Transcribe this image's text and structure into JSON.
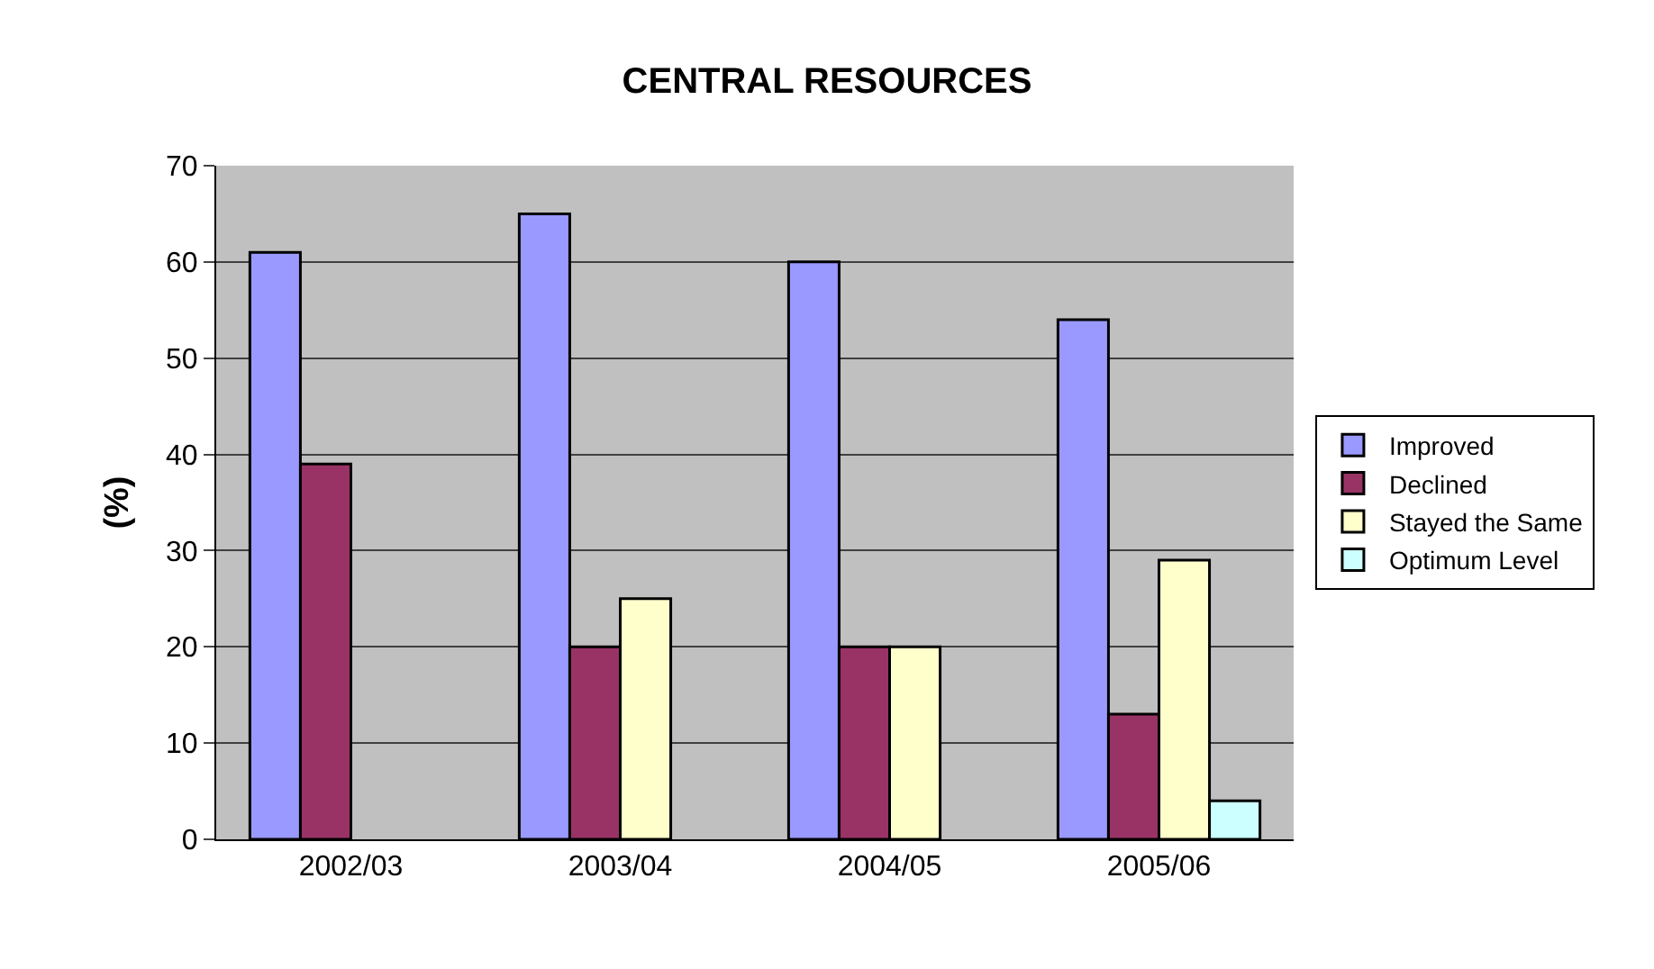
{
  "chart_data": {
    "type": "bar",
    "title": "CENTRAL RESOURCES",
    "ylabel": "(%)",
    "categories": [
      "2002/03",
      "2003/04",
      "2004/05",
      "2005/06"
    ],
    "series": [
      {
        "name": "Improved",
        "color": "#9999ff",
        "values": [
          61,
          65,
          60,
          54
        ]
      },
      {
        "name": "Declined",
        "color": "#993366",
        "values": [
          39,
          20,
          20,
          13
        ]
      },
      {
        "name": "Stayed the Same",
        "color": "#ffffcc",
        "values": [
          null,
          25,
          20,
          29
        ]
      },
      {
        "name": "Optimum Level",
        "color": "#ccffff",
        "values": [
          null,
          null,
          null,
          4
        ]
      }
    ],
    "ylim": [
      0,
      70
    ],
    "yticks": [
      0,
      10,
      20,
      30,
      40,
      50,
      60,
      70
    ],
    "grid": "y",
    "legend": "right"
  }
}
